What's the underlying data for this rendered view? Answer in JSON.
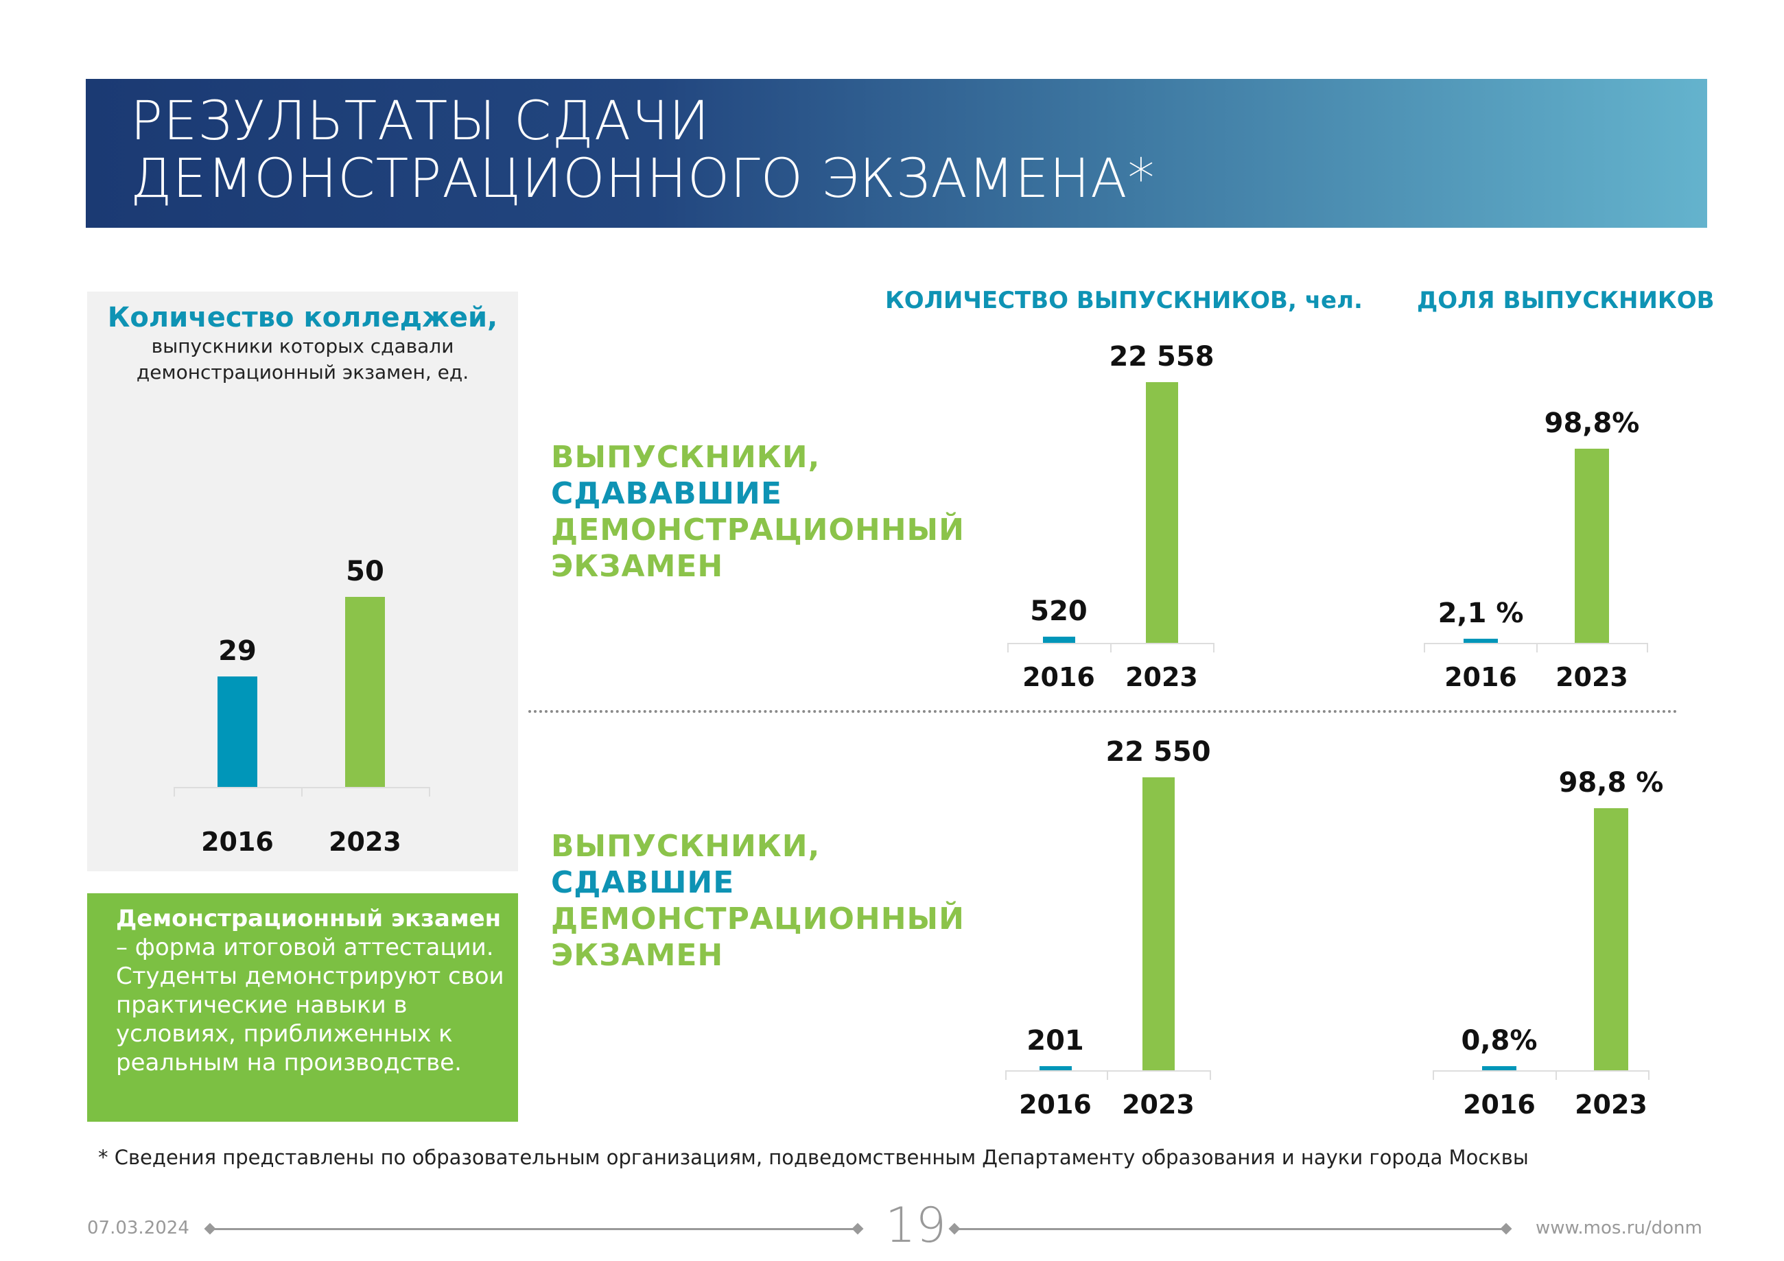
{
  "header": {
    "title_line1": "РЕЗУЛЬТАТЫ СДАЧИ",
    "title_line2": "ДЕМОНСТРАЦИОННОГО ЭКЗАМЕНА*"
  },
  "colleges": {
    "heading": "Количество колледжей,",
    "subtitle_line1": "выпускники которых сдавали",
    "subtitle_line2": "демонстрационный экзамен, ед."
  },
  "definition": {
    "bold": "Демонстрационный экзамен",
    "rest": " – форма итоговой аттестации.",
    "line2": "Студенты демонстрируют свои практические навыки в условиях, приближенных к реальным на производстве."
  },
  "section_headers": {
    "count": "КОЛИЧЕСТВО ВЫПУСКНИКОВ, чел.",
    "share": "ДОЛЯ ВЫПУСКНИКОВ"
  },
  "row1_label": [
    "ВЫПУСКНИКИ,",
    "СДАВАВШИЕ",
    "ДЕМОНСТРАЦИОННЫЙ",
    "ЭКЗАМЕН"
  ],
  "row2_label": [
    "ВЫПУСКНИКИ,",
    "СДАВШИЕ",
    "ДЕМОНСТРАЦИОННЫЙ",
    "ЭКЗАМЕН"
  ],
  "colors": {
    "teal": "#0096b9",
    "green": "#8bc34a"
  },
  "chart_data": [
    {
      "type": "bar",
      "title": "Количество колледжей",
      "categories": [
        "2016",
        "2023"
      ],
      "values": [
        29,
        50
      ],
      "labels": [
        "29",
        "50"
      ]
    },
    {
      "type": "bar",
      "title": "Выпускники, сдававшие — количество",
      "categories": [
        "2016",
        "2023"
      ],
      "values": [
        520,
        22558
      ],
      "labels": [
        "520",
        "22 558"
      ]
    },
    {
      "type": "bar",
      "title": "Выпускники, сдававшие — доля",
      "categories": [
        "2016",
        "2023"
      ],
      "values": [
        2.1,
        98.8
      ],
      "labels": [
        "2,1 %",
        "98,8%"
      ]
    },
    {
      "type": "bar",
      "title": "Выпускники, сдавшие — количество",
      "categories": [
        "2016",
        "2023"
      ],
      "values": [
        201,
        22550
      ],
      "labels": [
        "201",
        "22 550"
      ]
    },
    {
      "type": "bar",
      "title": "Выпускники, сдавшие — доля",
      "categories": [
        "2016",
        "2023"
      ],
      "values": [
        0.8,
        98.8
      ],
      "labels": [
        "0,8%",
        "98,8 %"
      ]
    }
  ],
  "footnote": "* Сведения представлены по образовательным организациям, подведомственным Департаменту образования и науки города Москвы",
  "footer": {
    "date": "07.03.2024",
    "page": "19",
    "url": "www.mos.ru/donm"
  }
}
